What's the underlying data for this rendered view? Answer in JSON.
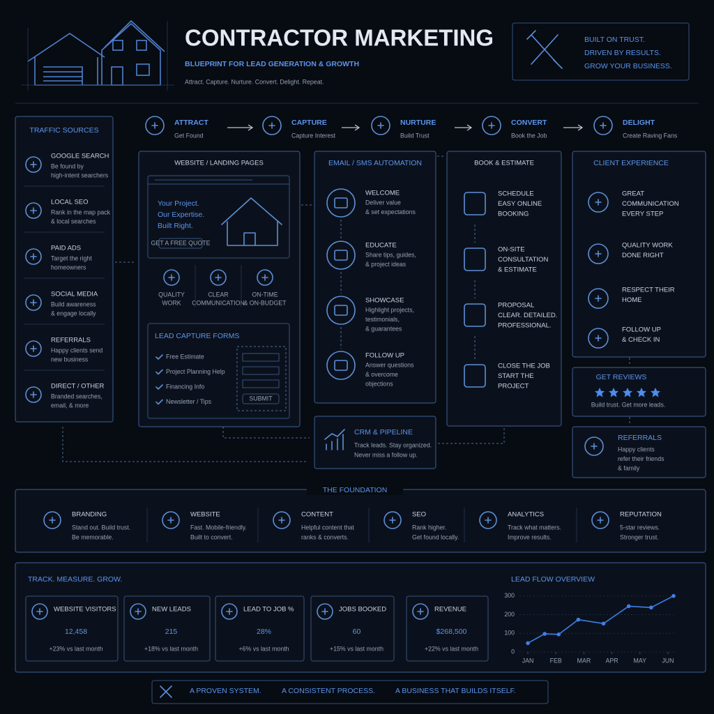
{
  "header": {
    "title": "CONTRACTOR MARKETING",
    "subtitle": "BLUEPRINT FOR LEAD GENERATION & GROWTH",
    "tagline": "Attract. Capture. Nurture. Convert. Delight. Repeat.",
    "motto": [
      "BUILT ON TRUST.",
      "DRIVEN BY RESULTS.",
      "GROW YOUR BUSINESS."
    ]
  },
  "stages": [
    {
      "name": "ATTRACT",
      "sub": "Get Found"
    },
    {
      "name": "CAPTURE",
      "sub": "Capture Interest"
    },
    {
      "name": "NURTURE",
      "sub": "Build Trust"
    },
    {
      "name": "CONVERT",
      "sub": "Book the Job"
    },
    {
      "name": "DELIGHT",
      "sub": "Create Raving Fans"
    }
  ],
  "traffic": {
    "title": "TRAFFIC SOURCES",
    "items": [
      {
        "name": "GOOGLE SEARCH",
        "desc": [
          "Be found by",
          "high-intent searchers"
        ]
      },
      {
        "name": "LOCAL SEO",
        "desc": [
          "Rank in the map pack",
          "& local searches"
        ]
      },
      {
        "name": "PAID ADS",
        "desc": [
          "Target the right",
          "homeowners"
        ]
      },
      {
        "name": "SOCIAL MEDIA",
        "desc": [
          "Build awareness",
          "& engage locally"
        ]
      },
      {
        "name": "REFERRALS",
        "desc": [
          "Happy clients send",
          "new business"
        ]
      },
      {
        "name": "DIRECT / OTHER",
        "desc": [
          "Branded searches,",
          "email, & more"
        ]
      }
    ]
  },
  "website": {
    "title": "WEBSITE / LANDING PAGES",
    "hero": [
      "Your Project.",
      "Our Expertise.",
      "Built Right."
    ],
    "button": "GET A FREE QUOTE",
    "features": [
      [
        "QUALITY",
        "WORK"
      ],
      [
        "CLEAR",
        "COMMUNICATION"
      ],
      [
        "ON-TIME",
        "& ON-BUDGET"
      ]
    ]
  },
  "lead_capture": {
    "title": "LEAD CAPTURE FORMS",
    "items": [
      "Free Estimate",
      "Project Planning Help",
      "Financing Info",
      "Newsletter / Tips"
    ],
    "button": "SUBMIT"
  },
  "email": {
    "title": "EMAIL / SMS AUTOMATION",
    "items": [
      {
        "name": "WELCOME",
        "desc": [
          "Deliver value",
          "& set expectations"
        ]
      },
      {
        "name": "EDUCATE",
        "desc": [
          "Share tips, guides,",
          "& project ideas"
        ]
      },
      {
        "name": "SHOWCASE",
        "desc": [
          "Highlight projects,",
          "testimonials,",
          "& guarantees"
        ]
      },
      {
        "name": "FOLLOW UP",
        "desc": [
          "Answer questions",
          "& overcome",
          "objections"
        ]
      }
    ]
  },
  "crm": {
    "title": "CRM & PIPELINE",
    "desc": [
      "Track leads. Stay organized.",
      "Never miss a follow up."
    ]
  },
  "book": {
    "title": "BOOK & ESTIMATE",
    "items": [
      [
        "SCHEDULE",
        "EASY ONLINE",
        "BOOKING"
      ],
      [
        "ON-SITE",
        "CONSULTATION",
        "& ESTIMATE"
      ],
      [
        "PROPOSAL",
        "CLEAR. DETAILED.",
        "PROFESSIONAL."
      ],
      [
        "CLOSE THE JOB",
        "START THE",
        "PROJECT"
      ]
    ]
  },
  "client": {
    "title": "CLIENT EXPERIENCE",
    "items": [
      [
        "GREAT",
        "COMMUNICATION",
        "EVERY STEP"
      ],
      [
        "QUALITY WORK",
        "DONE RIGHT"
      ],
      [
        "RESPECT THEIR",
        "HOME"
      ],
      [
        "FOLLOW UP",
        "& CHECK IN"
      ]
    ]
  },
  "reviews": {
    "title": "GET REVIEWS",
    "desc": "Build trust. Get more leads."
  },
  "referrals": {
    "title": "REFERRALS",
    "desc": [
      "Happy clients",
      "refer their friends",
      "& family"
    ]
  },
  "foundation": {
    "title": "THE FOUNDATION",
    "items": [
      {
        "name": "BRANDING",
        "desc": [
          "Stand out. Build trust.",
          "Be memorable."
        ]
      },
      {
        "name": "WEBSITE",
        "desc": [
          "Fast. Mobile-friendly.",
          "Built to convert."
        ]
      },
      {
        "name": "CONTENT",
        "desc": [
          "Helpful content that",
          "ranks & converts."
        ]
      },
      {
        "name": "SEO",
        "desc": [
          "Rank higher.",
          "Get found locally."
        ]
      },
      {
        "name": "ANALYTICS",
        "desc": [
          "Track what matters.",
          "Improve results."
        ]
      },
      {
        "name": "REPUTATION",
        "desc": [
          "5-star reviews.",
          "Stronger trust."
        ]
      }
    ]
  },
  "track": {
    "title": "TRACK. MEASURE. GROW.",
    "kpis": [
      {
        "label": "WEBSITE VISITORS",
        "value": "12,458",
        "change": "+23% vs last month"
      },
      {
        "label": "NEW LEADS",
        "value": "215",
        "change": "+18% vs last month"
      },
      {
        "label": "LEAD TO JOB %",
        "value": "28%",
        "change": "+6% vs last month"
      },
      {
        "label": "JOBS BOOKED",
        "value": "60",
        "change": "+15% vs last month"
      },
      {
        "label": "REVENUE",
        "value": "$268,500",
        "change": "+22% vs last month"
      }
    ]
  },
  "chart_data": {
    "type": "line",
    "title": "LEAD FLOW OVERVIEW",
    "x": [
      0,
      0.6,
      1.1,
      1.8,
      2.7,
      3.6,
      4.4,
      5.2
    ],
    "series": [
      {
        "color": "#3f7fe8",
        "values": [
          47,
          97,
          94,
          173,
          152,
          245,
          238,
          300
        ]
      }
    ],
    "xlim": [
      -0.3,
      5.3
    ],
    "xticks": [
      {
        "value": 0,
        "label": "JAN"
      },
      {
        "value": 1,
        "label": "FEB"
      },
      {
        "value": 2,
        "label": "MAR"
      },
      {
        "value": 3,
        "label": "APR"
      },
      {
        "value": 4,
        "label": "MAY"
      },
      {
        "value": 5,
        "label": "JUN"
      }
    ],
    "ylim": [
      0,
      310
    ],
    "yticks": [
      0,
      100,
      200,
      300
    ],
    "grid": true
  },
  "footer": [
    "A PROVEN SYSTEM.",
    "A CONSISTENT PROCESS.",
    "A BUSINESS THAT BUILDS ITSELF."
  ]
}
